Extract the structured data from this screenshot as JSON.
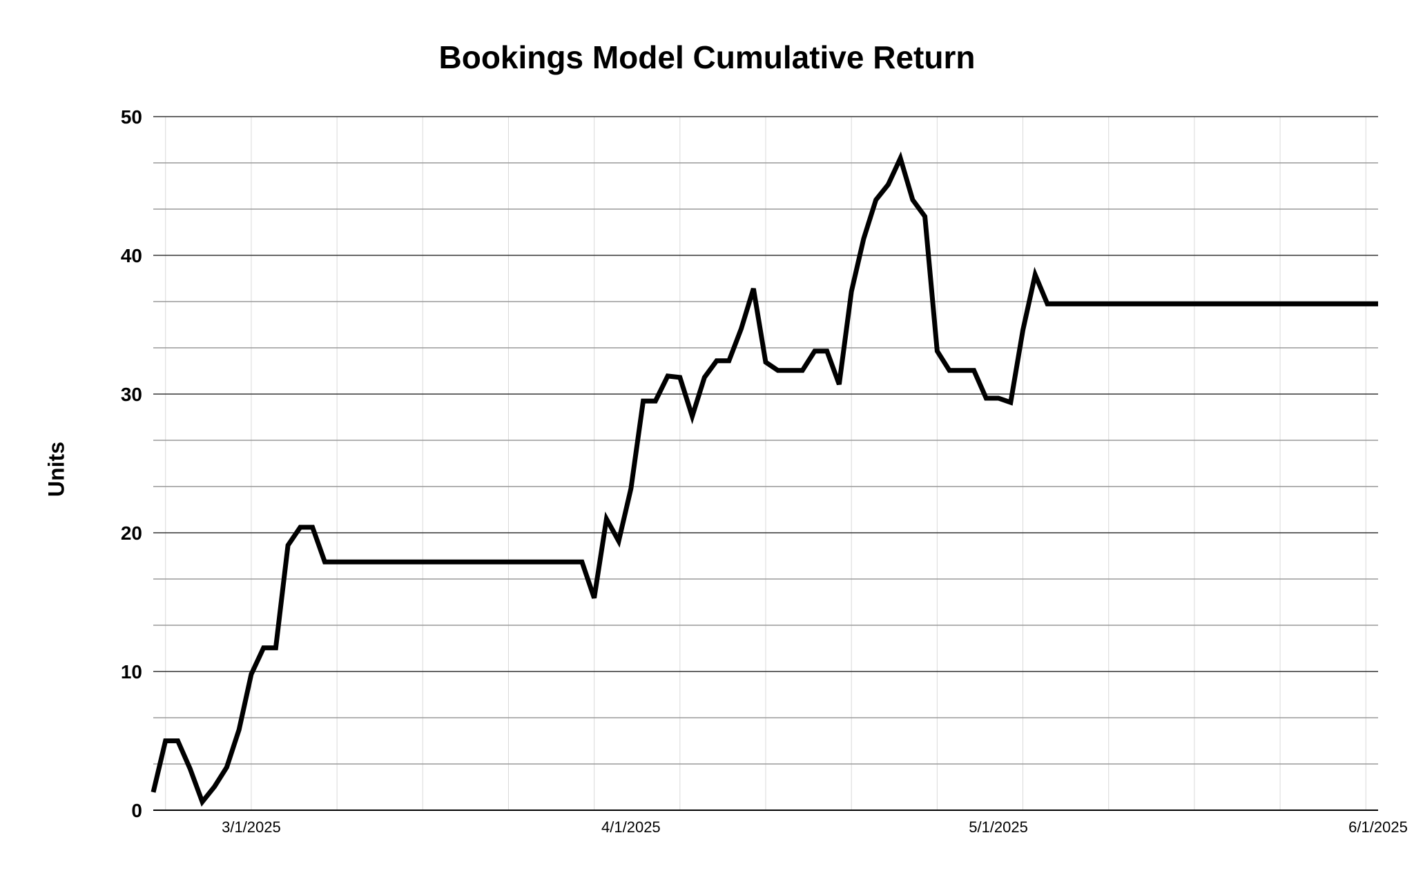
{
  "chart_data": {
    "type": "line",
    "title": "Bookings Model Cumulative Return",
    "xlabel": "",
    "ylabel": "Units",
    "ylim": [
      0,
      50
    ],
    "xlim": [
      "2025-02-21",
      "2025-06-01"
    ],
    "yticks": [
      0,
      10,
      20,
      30,
      40,
      50
    ],
    "xticks": [
      {
        "date": "2025-03-01",
        "label": "3/1/2025"
      },
      {
        "date": "2025-04-01",
        "label": "4/1/2025"
      },
      {
        "date": "2025-05-01",
        "label": "5/1/2025"
      },
      {
        "date": "2025-06-01",
        "label": "6/1/2025"
      }
    ],
    "grid": true,
    "legend": "none",
    "line_color": "#000000",
    "series": [
      {
        "points": [
          [
            "2025-02-21",
            1.3
          ],
          [
            "2025-02-22",
            5.0
          ],
          [
            "2025-02-23",
            5.0
          ],
          [
            "2025-02-24",
            3.0
          ],
          [
            "2025-02-25",
            0.6
          ],
          [
            "2025-02-26",
            1.7
          ],
          [
            "2025-02-27",
            3.1
          ],
          [
            "2025-02-28",
            5.8
          ],
          [
            "2025-03-01",
            9.8
          ],
          [
            "2025-03-02",
            11.7
          ],
          [
            "2025-03-03",
            11.7
          ],
          [
            "2025-03-04",
            19.1
          ],
          [
            "2025-03-05",
            20.4
          ],
          [
            "2025-03-06",
            20.4
          ],
          [
            "2025-03-07",
            17.9
          ],
          [
            "2025-03-20",
            17.9
          ],
          [
            "2025-03-28",
            17.9
          ],
          [
            "2025-03-29",
            15.3
          ],
          [
            "2025-03-30",
            21.0
          ],
          [
            "2025-03-31",
            19.4
          ],
          [
            "2025-04-01",
            23.2
          ],
          [
            "2025-04-02",
            29.5
          ],
          [
            "2025-04-03",
            29.5
          ],
          [
            "2025-04-04",
            31.3
          ],
          [
            "2025-04-05",
            31.2
          ],
          [
            "2025-04-06",
            28.4
          ],
          [
            "2025-04-07",
            31.2
          ],
          [
            "2025-04-08",
            32.4
          ],
          [
            "2025-04-09",
            32.4
          ],
          [
            "2025-04-10",
            34.7
          ],
          [
            "2025-04-11",
            37.6
          ],
          [
            "2025-04-12",
            32.3
          ],
          [
            "2025-04-13",
            31.7
          ],
          [
            "2025-04-14",
            31.7
          ],
          [
            "2025-04-15",
            31.7
          ],
          [
            "2025-04-16",
            33.1
          ],
          [
            "2025-04-17",
            33.1
          ],
          [
            "2025-04-18",
            30.7
          ],
          [
            "2025-04-19",
            37.4
          ],
          [
            "2025-04-20",
            41.2
          ],
          [
            "2025-04-21",
            44.0
          ],
          [
            "2025-04-22",
            45.1
          ],
          [
            "2025-04-23",
            47.0
          ],
          [
            "2025-04-24",
            44.0
          ],
          [
            "2025-04-25",
            42.8
          ],
          [
            "2025-04-26",
            33.1
          ],
          [
            "2025-04-27",
            31.7
          ],
          [
            "2025-04-28",
            31.7
          ],
          [
            "2025-04-29",
            31.7
          ],
          [
            "2025-04-30",
            29.7
          ],
          [
            "2025-05-01",
            29.7
          ],
          [
            "2025-05-02",
            29.4
          ],
          [
            "2025-05-03",
            34.6
          ],
          [
            "2025-05-04",
            38.6
          ],
          [
            "2025-05-05",
            36.5
          ],
          [
            "2025-06-01",
            36.5
          ]
        ]
      }
    ]
  }
}
